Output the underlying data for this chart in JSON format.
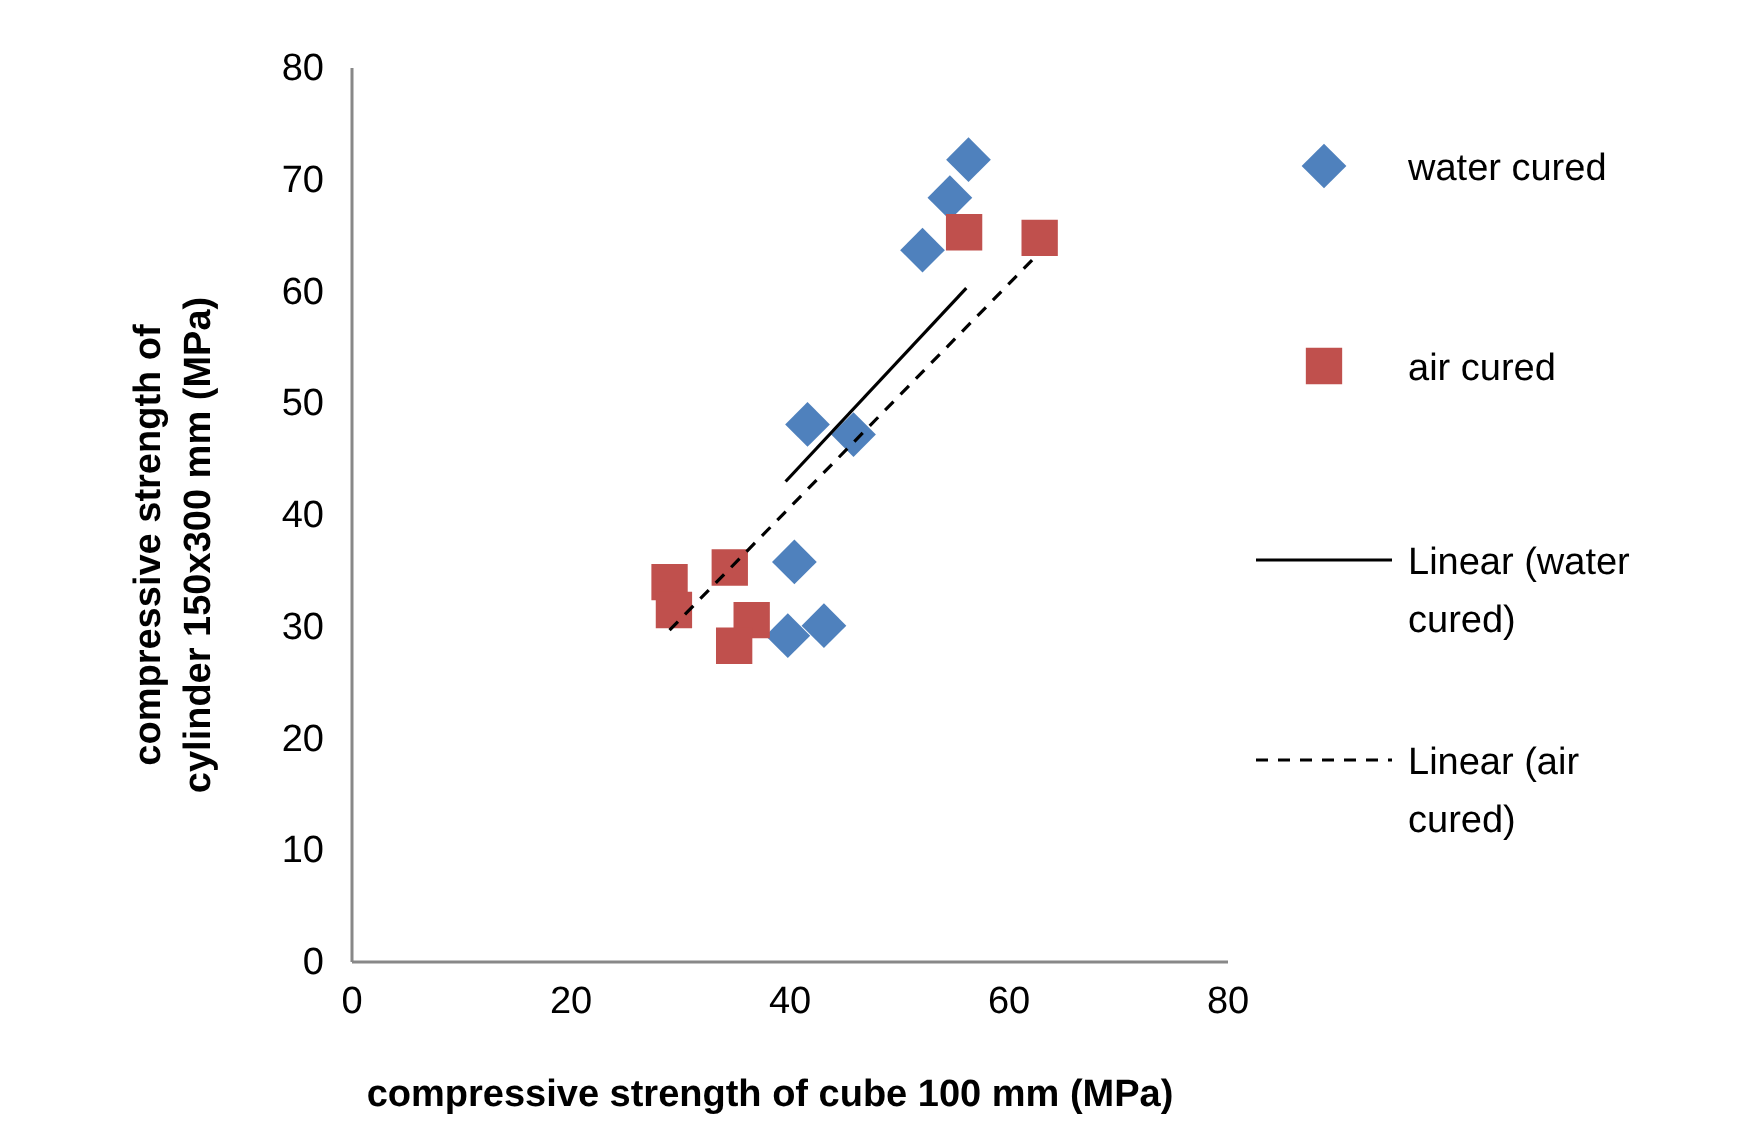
{
  "chart_data": {
    "type": "scatter",
    "xlabel": "compressive strength of cube 100 mm (MPa)",
    "ylabel": "compressive strength of\ncylinder 150x300 mm (MPa)",
    "xlim": [
      0,
      80
    ],
    "xticks": [
      0,
      20,
      40,
      60,
      80
    ],
    "ylim": [
      0,
      80
    ],
    "yticks": [
      0,
      10,
      20,
      30,
      40,
      50,
      60,
      70,
      80
    ],
    "grid": false,
    "legend": "right",
    "series": [
      {
        "name": "water cured",
        "color": "#4f81bd",
        "marker": "diamond",
        "x": [
          56.3,
          54.6,
          52.1,
          41.6,
          45.8,
          40.4,
          39.8,
          43.1
        ],
        "values": [
          71.8,
          68.4,
          63.7,
          48.1,
          47.2,
          35.8,
          29.2,
          30.1
        ]
      },
      {
        "name": "air cured",
        "color": "#c0504d",
        "marker": "square",
        "x": [
          55.9,
          62.8,
          29.0,
          29.4,
          34.5,
          36.5,
          34.9
        ],
        "values": [
          65.3,
          64.8,
          34.0,
          31.5,
          35.3,
          30.6,
          28.3
        ]
      },
      {
        "name": "Linear (water cured)",
        "type": "line",
        "color": "#000000",
        "line_style": "solid",
        "x": [
          39.6,
          56.1
        ],
        "values": [
          43.0,
          60.3
        ]
      },
      {
        "name": "Linear (air cured)",
        "type": "line",
        "color": "#000000",
        "line_style": "dashed",
        "x": [
          29.0,
          62.5
        ],
        "values": [
          29.7,
          63.2
        ]
      }
    ]
  }
}
